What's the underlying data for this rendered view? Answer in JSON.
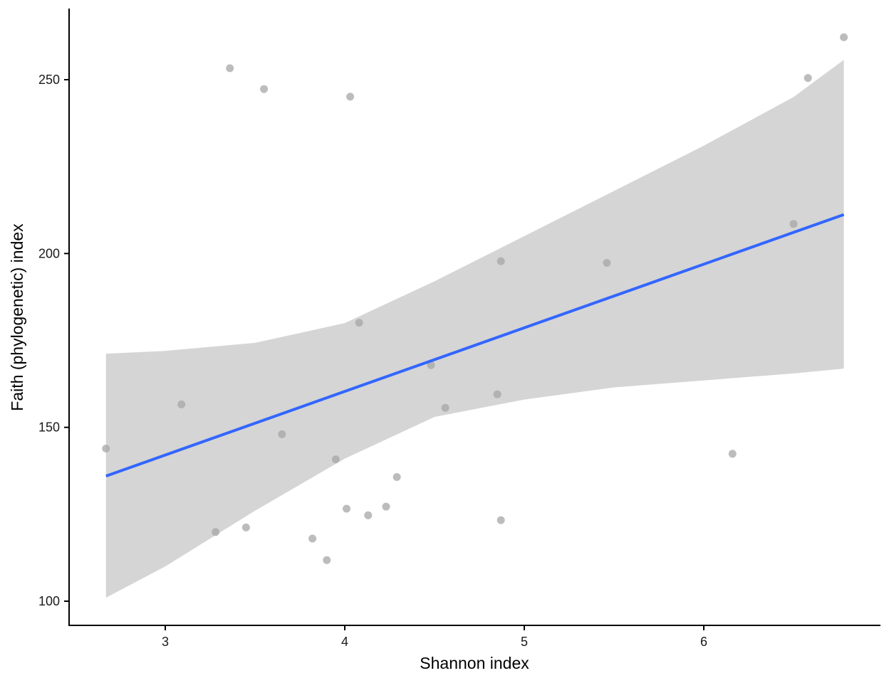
{
  "chart_data": {
    "type": "scatter",
    "xlabel": "Shannon index",
    "ylabel": "Faith (phylogenetic) index",
    "xlim": [
      2.48,
      6.98
    ],
    "ylim": [
      93,
      268
    ],
    "x_ticks": [
      3,
      4,
      5,
      6
    ],
    "y_ticks": [
      100,
      150,
      200,
      250
    ],
    "grid": false,
    "points": [
      {
        "x": 2.67,
        "y": 143.9
      },
      {
        "x": 3.09,
        "y": 156.6
      },
      {
        "x": 3.28,
        "y": 119.9
      },
      {
        "x": 3.36,
        "y": 253.3
      },
      {
        "x": 3.45,
        "y": 121.2
      },
      {
        "x": 3.55,
        "y": 247.3
      },
      {
        "x": 3.65,
        "y": 148.0
      },
      {
        "x": 3.82,
        "y": 118.0
      },
      {
        "x": 3.9,
        "y": 111.8
      },
      {
        "x": 3.95,
        "y": 140.8
      },
      {
        "x": 4.01,
        "y": 126.6
      },
      {
        "x": 4.03,
        "y": 245.1
      },
      {
        "x": 4.08,
        "y": 180.1
      },
      {
        "x": 4.13,
        "y": 124.7
      },
      {
        "x": 4.23,
        "y": 127.2
      },
      {
        "x": 4.29,
        "y": 135.7
      },
      {
        "x": 4.48,
        "y": 167.9
      },
      {
        "x": 4.56,
        "y": 155.6
      },
      {
        "x": 4.85,
        "y": 159.5
      },
      {
        "x": 4.87,
        "y": 197.8
      },
      {
        "x": 4.87,
        "y": 123.3
      },
      {
        "x": 5.46,
        "y": 197.3
      },
      {
        "x": 6.16,
        "y": 142.4
      },
      {
        "x": 6.5,
        "y": 208.5
      },
      {
        "x": 6.58,
        "y": 250.5
      },
      {
        "x": 6.78,
        "y": 262.2
      }
    ],
    "fit": {
      "method": "linear",
      "x": [
        2.67,
        6.78
      ],
      "y": [
        136.0,
        211.2
      ],
      "ci_band": {
        "x": [
          2.67,
          3.0,
          3.5,
          4.0,
          4.5,
          5.0,
          5.5,
          6.0,
          6.5,
          6.78
        ],
        "upper": [
          171.2,
          172.0,
          174.3,
          180.0,
          192.0,
          205.0,
          218.0,
          231.0,
          245.0,
          255.7
        ],
        "lower": [
          101.0,
          110.0,
          126.0,
          141.0,
          153.0,
          158.0,
          161.5,
          163.5,
          165.5,
          166.9
        ]
      }
    },
    "colors": {
      "points": "#a6a6a6",
      "line": "#3366ff",
      "band": "#d5d5d5",
      "axis": "#000000"
    }
  }
}
